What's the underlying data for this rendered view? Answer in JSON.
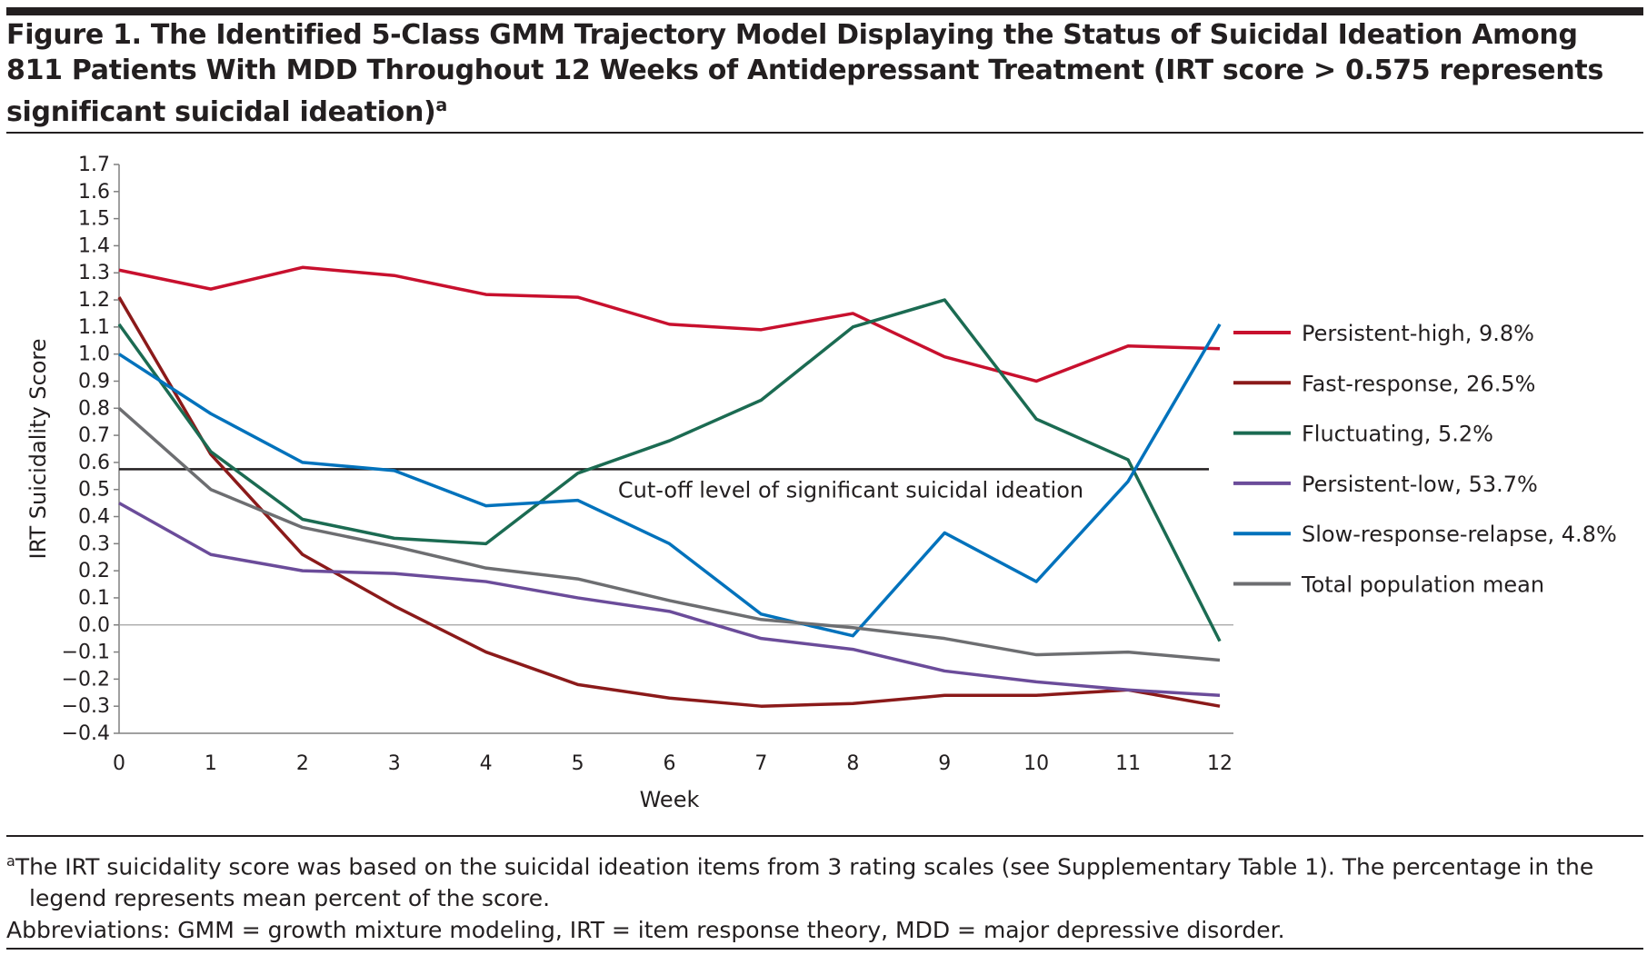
{
  "title": "Figure 1. The Identified 5-Class GMM Trajectory Model Displaying the Status of Suicidal Ideation Among 811 Patients With MDD Throughout 12 Weeks of Antidepressant Treatment (IRT score > 0.575 represents significant suicidal ideation)",
  "title_sup": "a",
  "footnote": {
    "sup": "a",
    "line1": "The IRT suicidality score was based on the suicidal ideation items from 3 rating scales (see Supplementary Table 1). The percentage in the",
    "line2": "legend represents mean percent of the score.",
    "abbreviations": "Abbreviations: GMM = growth mixture modeling, IRT = item response theory, MDD = major depressive disorder."
  },
  "chart_data": {
    "type": "line",
    "xlabel": "Week",
    "ylabel": "IRT Suicidality Score",
    "xlim": [
      0,
      12
    ],
    "ylim": [
      -0.4,
      1.7
    ],
    "x": [
      0,
      1,
      2,
      3,
      4,
      5,
      6,
      7,
      8,
      9,
      10,
      11,
      12
    ],
    "yticks": [
      "1.7",
      "1.6",
      "1.5",
      "1.4",
      "1.3",
      "1.2",
      "1.1",
      "1.0",
      "0.9",
      "0.8",
      "0.7",
      "0.6",
      "0.5",
      "0.4",
      "0.3",
      "0.2",
      "0.1",
      "0.0",
      "−0.1",
      "−0.2",
      "−0.3",
      "−0.4"
    ],
    "grid": false,
    "legend_placement": "right",
    "reference_line": {
      "y": 0.575,
      "label": "Cut-off level of significant suicidal ideation",
      "color": "#231f20"
    },
    "series": [
      {
        "name": "Persistent-high, 9.8%",
        "color": "#c8102e",
        "values": [
          1.31,
          1.24,
          1.32,
          1.29,
          1.22,
          1.21,
          1.11,
          1.09,
          1.15,
          0.99,
          0.9,
          1.03,
          1.02
        ]
      },
      {
        "name": "Fast-response, 26.5%",
        "color": "#8b1a1a",
        "values": [
          1.21,
          0.63,
          0.26,
          0.07,
          -0.1,
          -0.22,
          -0.27,
          -0.3,
          -0.29,
          -0.26,
          -0.26,
          -0.24,
          -0.3
        ]
      },
      {
        "name": "Fluctuating, 5.2%",
        "color": "#1b6b52",
        "values": [
          1.11,
          0.64,
          0.39,
          0.32,
          0.3,
          0.56,
          0.68,
          0.83,
          1.1,
          1.2,
          0.76,
          0.61,
          -0.06
        ]
      },
      {
        "name": "Persistent-low, 53.7%",
        "color": "#6b4c9a",
        "values": [
          0.45,
          0.26,
          0.2,
          0.19,
          0.16,
          0.1,
          0.05,
          -0.05,
          -0.09,
          -0.17,
          -0.21,
          -0.24,
          -0.26
        ]
      },
      {
        "name": "Slow-response-relapse, 4.8%",
        "color": "#0072bc",
        "values": [
          1.0,
          0.78,
          0.6,
          0.57,
          0.44,
          0.46,
          0.3,
          0.04,
          -0.04,
          0.34,
          0.16,
          0.53,
          1.11
        ]
      },
      {
        "name": "Total population mean",
        "color": "#6d6e71",
        "values": [
          0.8,
          0.5,
          0.36,
          0.29,
          0.21,
          0.17,
          0.09,
          0.02,
          -0.01,
          -0.05,
          -0.11,
          -0.1,
          -0.13
        ]
      }
    ]
  }
}
